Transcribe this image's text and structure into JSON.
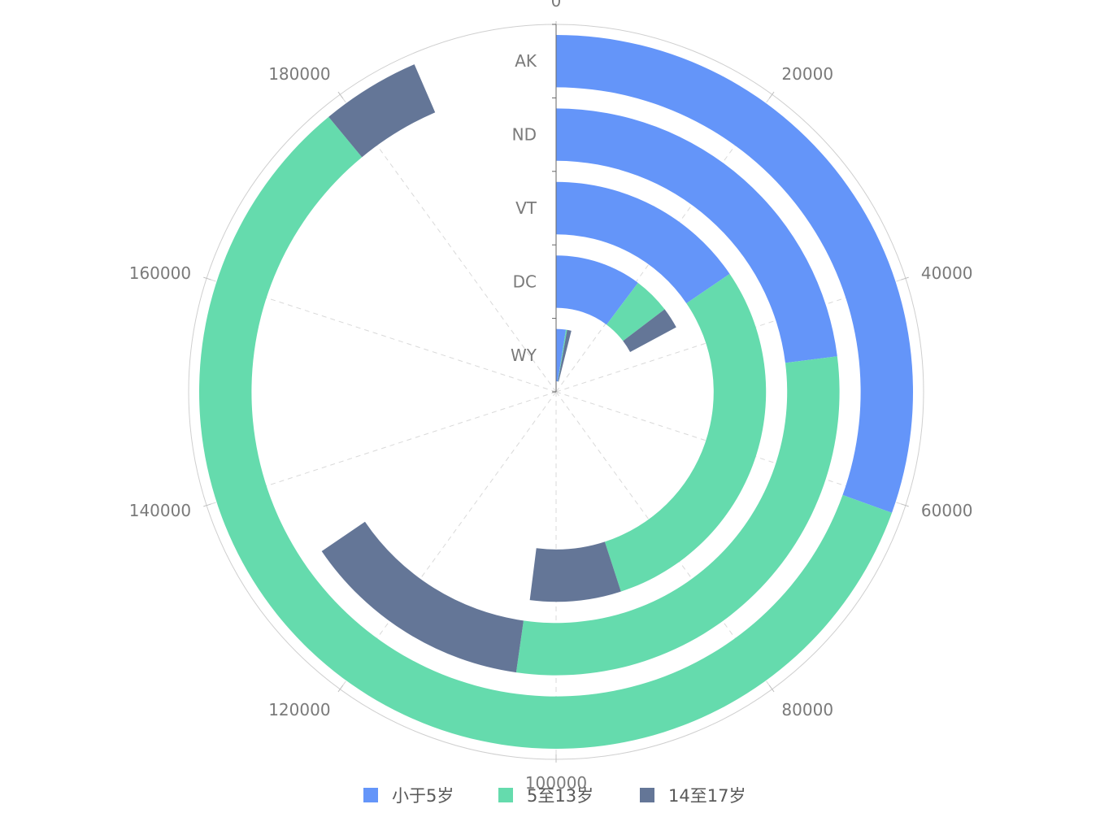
{
  "chart_data": {
    "type": "bar",
    "layout": "polar-radial-stacked-bar",
    "categories": [
      "WY",
      "DC",
      "VT",
      "ND",
      "AK"
    ],
    "series": [
      {
        "name": "小于5岁",
        "values": [
          5000,
          20500,
          31000,
          46000,
          61000
        ]
      },
      {
        "name": "5至13岁",
        "values": [
          600,
          8800,
          59000,
          58500,
          117000
        ]
      },
      {
        "name": "14至17岁",
        "values": [
          2200,
          5000,
          14000,
          26500,
          9000
        ]
      }
    ],
    "angle_axis": {
      "min": 0,
      "max": 200000,
      "ticks": [
        0,
        20000,
        40000,
        60000,
        80000,
        100000,
        120000,
        140000,
        160000,
        180000
      ],
      "tick_labels": [
        "0",
        "20000",
        "40000",
        "60000",
        "80000",
        "100000",
        "120000",
        "140000",
        "160000",
        "180000"
      ]
    },
    "radius_axis": {
      "labels": [
        "WY",
        "DC",
        "VT",
        "ND",
        "AK"
      ]
    },
    "grid": true,
    "legend_position": "bottom",
    "colors": {
      "小于5岁": "#6495f9",
      "5至13岁": "#65dbad",
      "14至17岁": "#647697"
    }
  }
}
